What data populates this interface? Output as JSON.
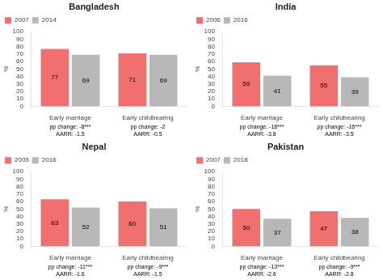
{
  "chart_data": [
    {
      "type": "bar",
      "title": "Bangladesh",
      "categories": [
        "Early marriage",
        "Early childbearing"
      ],
      "series": [
        {
          "name": "2007",
          "color": "#f07070",
          "values": [
            77,
            71
          ]
        },
        {
          "name": "2014",
          "color": "#b8b8b8",
          "values": [
            69,
            69
          ]
        }
      ],
      "annotations": [
        "pp change: -8***\nAARR: -1.5",
        "pp change: -2\nAARR: -0.5"
      ],
      "y_label": "%",
      "ylim": [
        0,
        100
      ],
      "yticks": [
        0,
        10,
        20,
        30,
        40,
        50,
        60,
        70,
        80,
        90,
        100
      ],
      "grid": false,
      "legend": "upper left",
      "data_labels": true
    },
    {
      "type": "bar",
      "title": "India",
      "categories": [
        "Early marriage",
        "Early childbearing"
      ],
      "series": [
        {
          "name": "2006",
          "color": "#f07070",
          "values": [
            59,
            55
          ]
        },
        {
          "name": "2016",
          "color": "#b8b8b8",
          "values": [
            41,
            39
          ]
        }
      ],
      "annotations": [
        "pp change: -18***\nAARR: -3.8",
        "pp change: -16***\nAARR: -3.5"
      ],
      "y_label": "%",
      "ylim": [
        0,
        100
      ],
      "yticks": [
        0,
        10,
        20,
        30,
        40,
        50,
        60,
        70,
        80,
        90,
        100
      ],
      "grid": false,
      "legend": "upper left",
      "data_labels": true
    },
    {
      "type": "bar",
      "title": "Nepal",
      "categories": [
        "Early marriage",
        "Early childbearing"
      ],
      "series": [
        {
          "name": "2005",
          "color": "#f07070",
          "values": [
            63,
            60
          ]
        },
        {
          "name": "2016",
          "color": "#b8b8b8",
          "values": [
            52,
            51
          ]
        }
      ],
      "annotations": [
        "pp change: -11***\nAARR: -1.6",
        "pp change: -9***\nAARR: -1.5"
      ],
      "y_label": "%",
      "ylim": [
        0,
        100
      ],
      "yticks": [
        0,
        10,
        20,
        30,
        40,
        50,
        60,
        70,
        80,
        90,
        100
      ],
      "grid": false,
      "legend": "upper left",
      "data_labels": true
    },
    {
      "type": "bar",
      "title": "Pakistan",
      "categories": [
        "Early marriage",
        "Early childbearing"
      ],
      "series": [
        {
          "name": "2007",
          "color": "#f07070",
          "values": [
            50,
            47
          ]
        },
        {
          "name": "2018",
          "color": "#b8b8b8",
          "values": [
            37,
            38
          ]
        }
      ],
      "annotations": [
        "pp change: -13***\nAARR: -2.6",
        "pp change: -9***\nAARR: -2.8"
      ],
      "y_label": "%",
      "ylim": [
        0,
        100
      ],
      "yticks": [
        0,
        10,
        20,
        30,
        40,
        50,
        60,
        70,
        80,
        90,
        100
      ],
      "grid": false,
      "legend": "upper left",
      "data_labels": true
    }
  ]
}
